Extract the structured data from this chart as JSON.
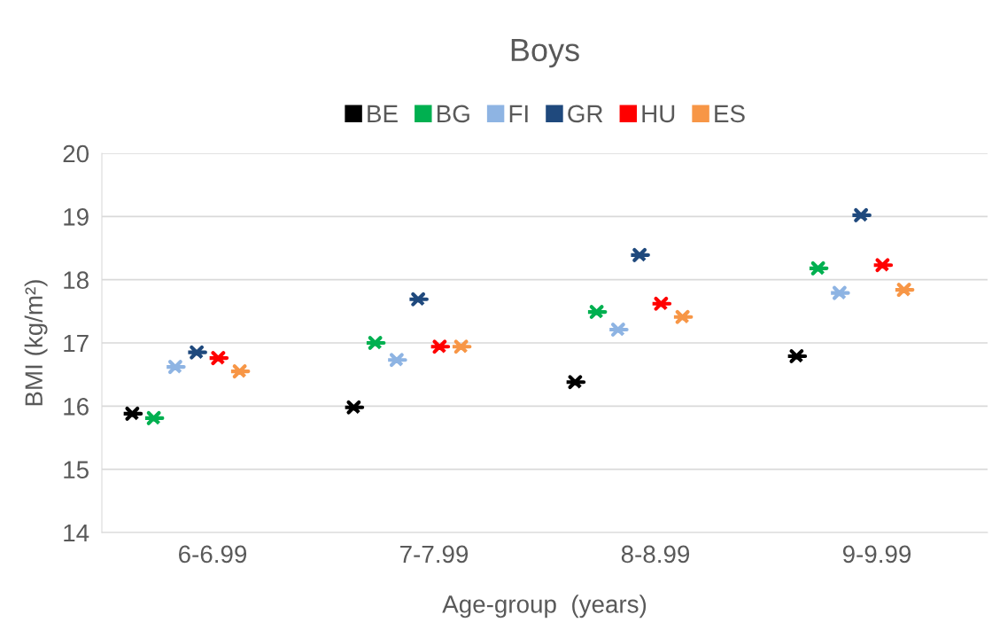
{
  "chart_data": {
    "type": "scatter",
    "title": "Boys",
    "xlabel": "Age-group  (years)",
    "ylabel": "BMI (kg/m²)",
    "categories": [
      "6-6.99",
      "7-7.99",
      "8-8.99",
      "9-9.99"
    ],
    "series": [
      {
        "name": "BE",
        "color": "#000000",
        "values": [
          15.88,
          15.98,
          16.38,
          16.79
        ]
      },
      {
        "name": "BG",
        "color": "#00b050",
        "values": [
          15.81,
          17.0,
          17.49,
          18.18
        ]
      },
      {
        "name": "FI",
        "color": "#8eb4e3",
        "values": [
          16.62,
          16.73,
          17.21,
          17.79
        ]
      },
      {
        "name": "GR",
        "color": "#1f497d",
        "values": [
          16.85,
          17.69,
          18.39,
          19.02
        ]
      },
      {
        "name": "HU",
        "color": "#ff0000",
        "values": [
          16.76,
          16.94,
          17.62,
          18.23
        ]
      },
      {
        "name": "ES",
        "color": "#f79646",
        "values": [
          16.55,
          16.94,
          17.41,
          17.84
        ]
      }
    ],
    "ylim": [
      14,
      20
    ],
    "yticks": [
      14,
      15,
      16,
      17,
      18,
      19,
      20
    ],
    "grid": "y",
    "legend": "top",
    "marker": "cross"
  }
}
